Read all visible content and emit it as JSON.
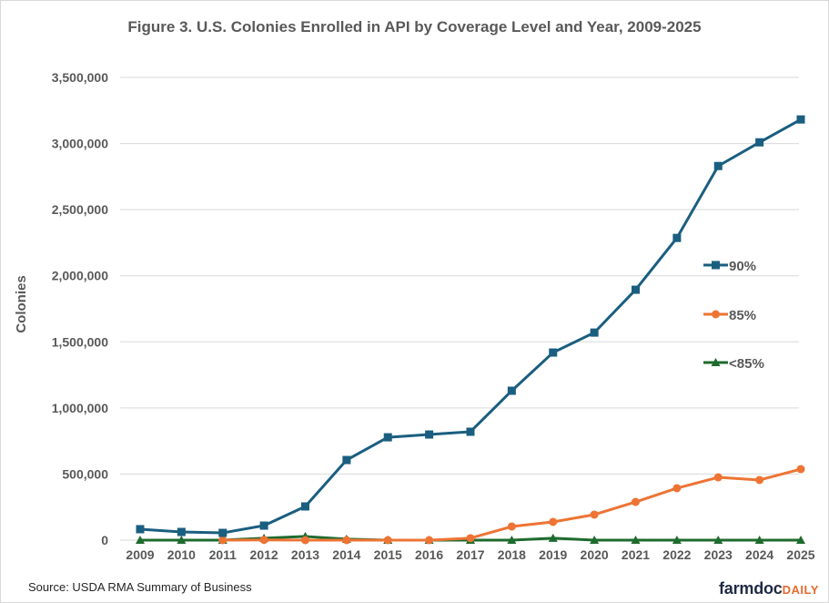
{
  "chart_data": {
    "type": "line",
    "title": "Figure 3. U.S. Colonies Enrolled in API by Coverage Level and Year, 2009-2025",
    "xlabel": "",
    "ylabel": "Colonies",
    "ylim": [
      0,
      3500000
    ],
    "yticks": [
      0,
      500000,
      1000000,
      1500000,
      2000000,
      2500000,
      3000000,
      3500000
    ],
    "ytick_labels": [
      "0",
      "500,000",
      "1,000,000",
      "1,500,000",
      "2,000,000",
      "2,500,000",
      "3,000,000",
      "3,500,000"
    ],
    "grid": true,
    "legend_position": "right",
    "x": [
      "2009",
      "2010",
      "2011",
      "2012",
      "2013",
      "2014",
      "2015",
      "2016",
      "2017",
      "2018",
      "2019",
      "2020",
      "2021",
      "2022",
      "2023",
      "2024",
      "2025"
    ],
    "series": [
      {
        "name": "90%",
        "color": "#1a5e80",
        "marker": "square",
        "values": [
          83000,
          62000,
          55000,
          110000,
          255000,
          606000,
          778000,
          799000,
          820000,
          1130000,
          1419000,
          1570000,
          1894000,
          2286000,
          2830000,
          3009000,
          3182000
        ]
      },
      {
        "name": "85%",
        "color": "#ed7434",
        "marker": "circle",
        "values": [
          null,
          null,
          0,
          2000,
          0,
          0,
          0,
          0,
          15000,
          103000,
          138000,
          193000,
          289000,
          393000,
          475000,
          455000,
          537000
        ]
      },
      {
        "name": "<85%",
        "color": "#1e6b2e",
        "marker": "triangle",
        "values": [
          0,
          0,
          0,
          15000,
          28000,
          8000,
          0,
          0,
          0,
          0,
          15000,
          0,
          0,
          0,
          0,
          0,
          0
        ]
      }
    ]
  },
  "footer": {
    "source": "Source: USDA RMA Summary of Business",
    "logo_main": "farmdoc",
    "logo_accent": "DAILY"
  }
}
